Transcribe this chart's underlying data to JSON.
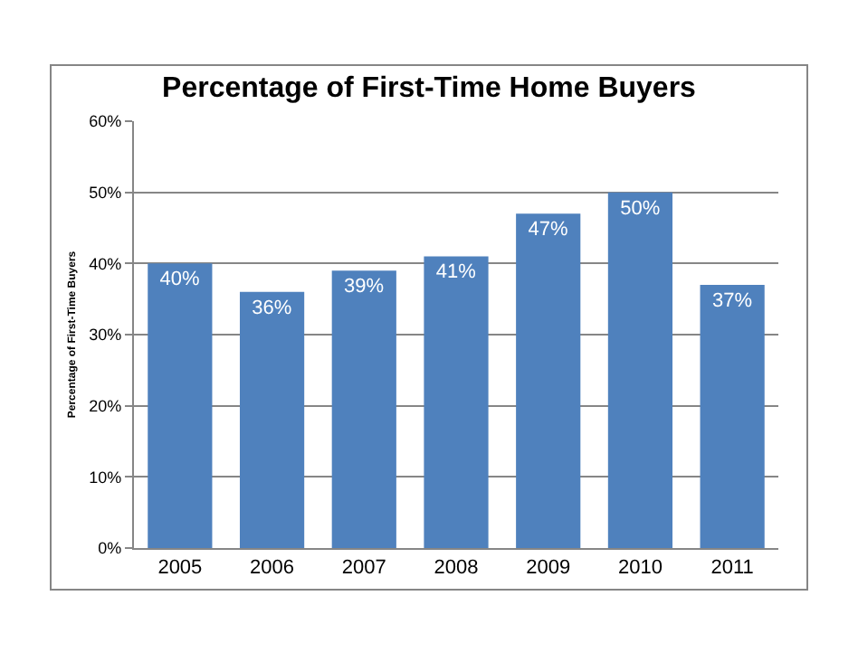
{
  "chart_data": {
    "type": "bar",
    "title": "Percentage of First-Time Home Buyers",
    "ylabel": "Percentage of First-Time Buyers",
    "categories": [
      "2005",
      "2006",
      "2007",
      "2008",
      "2009",
      "2010",
      "2011"
    ],
    "values": [
      40,
      36,
      39,
      41,
      47,
      50,
      37
    ],
    "value_labels": [
      "40%",
      "36%",
      "39%",
      "41%",
      "47%",
      "50%",
      "37%"
    ],
    "color": "#4f81bd",
    "ylim": [
      0,
      60
    ],
    "yticks": [
      {
        "value": 0,
        "label": "0%"
      },
      {
        "value": 10,
        "label": "10%"
      },
      {
        "value": 20,
        "label": "20%"
      },
      {
        "value": 30,
        "label": "30%"
      },
      {
        "value": 40,
        "label": "40%"
      },
      {
        "value": 50,
        "label": "50%"
      },
      {
        "value": 60,
        "label": "60%"
      }
    ],
    "grid": "y",
    "legend": false
  }
}
